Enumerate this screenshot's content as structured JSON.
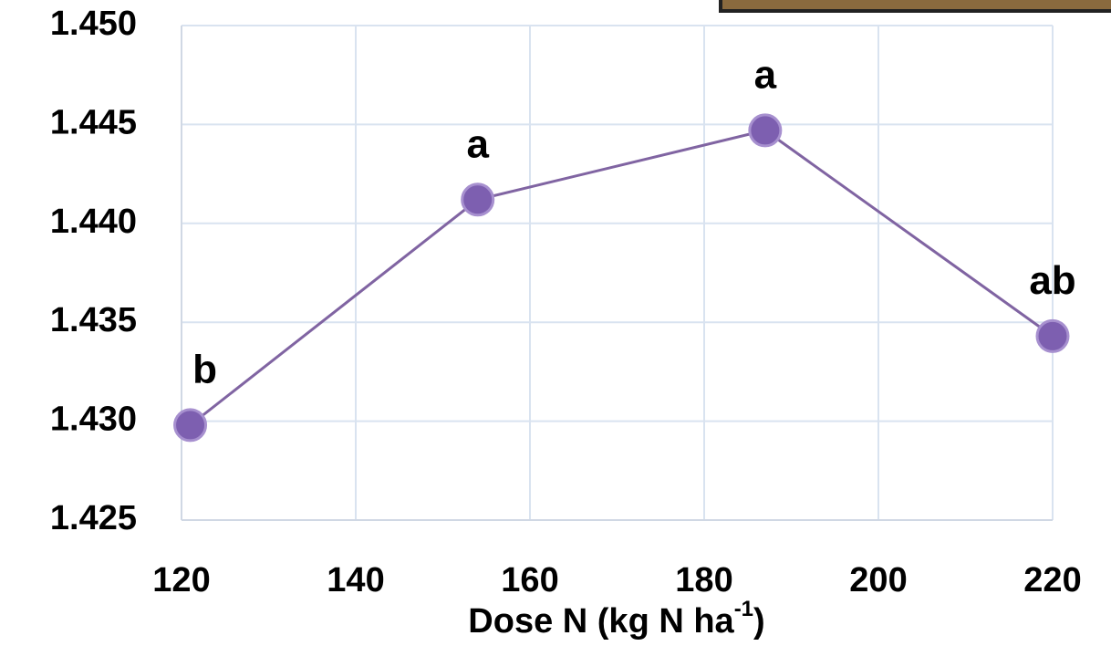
{
  "chart_data": {
    "type": "line",
    "x_label_parts": [
      "Dose N (kg N ha",
      "-1",
      ")"
    ],
    "x": [
      121,
      154,
      187,
      220
    ],
    "series": [
      {
        "color": "#8064a2",
        "values": [
          1.4298,
          1.4412,
          1.4447,
          1.4343
        ],
        "point_labels": [
          "b",
          "a",
          "a",
          "ab"
        ]
      }
    ],
    "xlim": [
      120,
      220
    ],
    "xticks": [
      120,
      140,
      160,
      180,
      200,
      220
    ],
    "ylim": [
      1.425,
      1.45
    ],
    "yticks": [
      1.425,
      {
        "value": 1.43,
        "label": "1.430"
      },
      1.435,
      {
        "value": 1.44,
        "label": "1.440"
      },
      1.445,
      {
        "value": 1.45,
        "label": "1.450"
      }
    ],
    "grid": true
  }
}
